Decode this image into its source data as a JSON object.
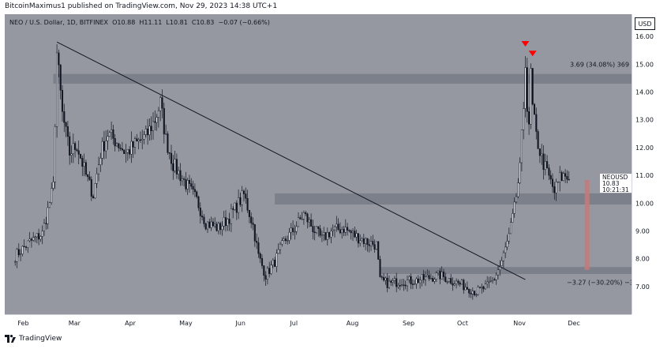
{
  "header": {
    "published": "BitcoinMaximus1 published on TradingView.com, Nov 29, 2023 14:38 UTC+1"
  },
  "legend": {
    "symbol": "NEO / U.S. Dollar, 1D, BITFINEX",
    "o_label": "O",
    "o": "10.88",
    "h_label": "H",
    "h": "11.11",
    "l_label": "L",
    "l": "10.81",
    "c_label": "C",
    "c": "10.83",
    "change": "−0.07 (−0.66%)"
  },
  "axis": {
    "currency": "USD",
    "ticker": "NEOUSD",
    "last_price": "10.83",
    "countdown": "10:21:31"
  },
  "footer": {
    "brand": "TradingView"
  },
  "colors": {
    "background": "#9598a1",
    "candle": "#131722",
    "zone": "#787b86",
    "arrow": "#ff0000",
    "measure": "#c27a7a"
  },
  "chart_data": {
    "type": "candlestick",
    "symbol": "NEOUSD",
    "timeframe": "1D",
    "exchange": "BITFINEX",
    "currency": "USD",
    "x_ticks": [
      "Feb",
      "Mar",
      "Apr",
      "May",
      "Jun",
      "Jul",
      "Aug",
      "Sep",
      "Oct",
      "Nov",
      "Dec"
    ],
    "y_ticks": [
      7.0,
      8.0,
      9.0,
      10.0,
      11.0,
      12.0,
      13.0,
      14.0,
      15.0,
      16.0
    ],
    "y_tick_labels": [
      "7.00",
      "8.00",
      "9.00",
      "10.00",
      "11.00",
      "12.00",
      "13.00",
      "14.00",
      "15.00",
      "16.00"
    ],
    "ylim": [
      6.0,
      16.8
    ],
    "price_path": [
      [
        "Jan 28",
        8.1
      ],
      [
        "Feb 5",
        8.6
      ],
      [
        "Feb 12",
        8.9
      ],
      [
        "Feb 18",
        10.6
      ],
      [
        "Feb 20",
        15.4
      ],
      [
        "Feb 23",
        13.2
      ],
      [
        "Feb 27",
        11.8
      ],
      [
        "Mar 3",
        12.1
      ],
      [
        "Mar 8",
        11.0
      ],
      [
        "Mar 12",
        10.3
      ],
      [
        "Mar 16",
        11.8
      ],
      [
        "Mar 20",
        12.5
      ],
      [
        "Mar 25",
        12.2
      ],
      [
        "Mar 30",
        11.8
      ],
      [
        "Apr 4",
        12.1
      ],
      [
        "Apr 10",
        12.4
      ],
      [
        "Apr 15",
        13.0
      ],
      [
        "Apr 18",
        13.6
      ],
      [
        "Apr 21",
        12.3
      ],
      [
        "Apr 25",
        11.4
      ],
      [
        "May 1",
        10.8
      ],
      [
        "May 8",
        10.1
      ],
      [
        "May 13",
        9.3
      ],
      [
        "May 20",
        9.1
      ],
      [
        "May 26",
        9.5
      ],
      [
        "Jun 3",
        10.3
      ],
      [
        "Jun 8",
        9.2
      ],
      [
        "Jun 11",
        8.1
      ],
      [
        "Jun 15",
        7.4
      ],
      [
        "Jun 20",
        7.9
      ],
      [
        "Jun 25",
        8.6
      ],
      [
        "Jul 1",
        9.1
      ],
      [
        "Jul 6",
        9.6
      ],
      [
        "Jul 11",
        9.1
      ],
      [
        "Jul 16",
        8.7
      ],
      [
        "Jul 21",
        9.0
      ],
      [
        "Jul 28",
        9.1
      ],
      [
        "Aug 4",
        8.8
      ],
      [
        "Aug 10",
        8.6
      ],
      [
        "Aug 15",
        8.5
      ],
      [
        "Aug 17",
        7.2
      ],
      [
        "Aug 22",
        7.1
      ],
      [
        "Aug 29",
        7.2
      ],
      [
        "Sep 5",
        7.2
      ],
      [
        "Sep 12",
        7.3
      ],
      [
        "Sep 19",
        7.4
      ],
      [
        "Sep 26",
        7.2
      ],
      [
        "Oct 3",
        7.0
      ],
      [
        "Oct 9",
        6.8
      ],
      [
        "Oct 15",
        7.0
      ],
      [
        "Oct 19",
        7.3
      ],
      [
        "Oct 23",
        7.9
      ],
      [
        "Oct 27",
        8.8
      ],
      [
        "Oct 30",
        9.8
      ],
      [
        "Nov 2",
        11.2
      ],
      [
        "Nov 4",
        13.5
      ],
      [
        "Nov 5",
        15.2
      ],
      [
        "Nov 6",
        13.4
      ],
      [
        "Nov 7",
        12.6
      ],
      [
        "Nov 8",
        14.7
      ],
      [
        "Nov 9",
        13.4
      ],
      [
        "Nov 11",
        12.4
      ],
      [
        "Nov 14",
        11.6
      ],
      [
        "Nov 17",
        11.1
      ],
      [
        "Nov 21",
        10.4
      ],
      [
        "Nov 24",
        10.9
      ],
      [
        "Nov 27",
        11.0
      ],
      [
        "Nov 29",
        10.83
      ]
    ],
    "horizontal_zones": [
      {
        "from": 14.3,
        "to": 14.65
      },
      {
        "from": 9.95,
        "to": 10.35
      },
      {
        "from": 7.45,
        "to": 7.7
      }
    ],
    "trendline": {
      "from": [
        "Feb 20",
        15.8
      ],
      "to": [
        "Nov 1",
        7.35
      ]
    },
    "measure_up": {
      "from": 11.0,
      "to": 14.7,
      "label": "3.69 (34.08%) 369"
    },
    "measure_down": {
      "from": 10.83,
      "to": 7.6,
      "label": "−3.27 (−30.20%) −327"
    },
    "tops": [
      [
        "Nov 5",
        15.55
      ],
      [
        "Nov 9",
        15.2
      ]
    ]
  }
}
